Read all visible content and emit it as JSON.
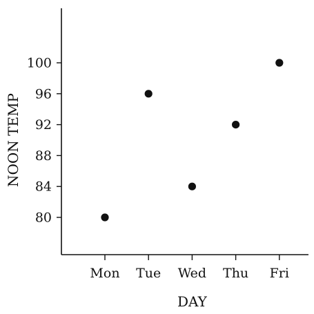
{
  "chart_data": {
    "type": "scatter",
    "title": "",
    "xlabel": "DAY",
    "ylabel": "NOON TEMP",
    "categories": [
      "Mon",
      "Tue",
      "Wed",
      "Thu",
      "Fri"
    ],
    "y_ticks": [
      80,
      84,
      88,
      92,
      96,
      100
    ],
    "ylim": [
      76,
      107
    ],
    "grid": false,
    "legend": "none",
    "point_color": "#111111",
    "series": [
      {
        "x": [
          "Mon",
          "Tue",
          "Wed",
          "Thu",
          "Fri"
        ],
        "values": [
          80,
          96,
          84,
          92,
          100
        ]
      }
    ]
  }
}
